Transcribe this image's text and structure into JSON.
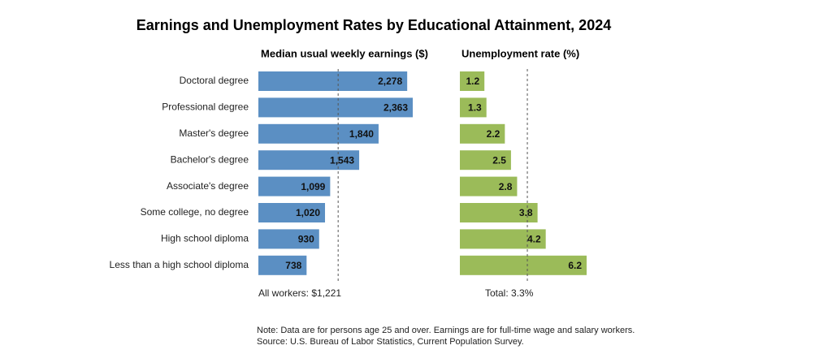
{
  "title": "Earnings and Unemployment Rates by Educational Attainment, 2024",
  "notes": [
    "Note: Data are for persons age 25 and over. Earnings are for full-time wage and salary workers.",
    "Source: U.S. Bureau of Labor Statistics, Current Population Survey."
  ],
  "chart_data": [
    {
      "type": "bar",
      "orientation": "horizontal",
      "title": "Median usual weekly earnings ($)",
      "categories": [
        "Doctoral degree",
        "Professional degree",
        "Master's degree",
        "Bachelor's degree",
        "Associate's degree",
        "Some college, no degree",
        "High school diploma",
        "Less than a high school diploma"
      ],
      "values": [
        2278,
        2363,
        1840,
        1543,
        1099,
        1020,
        930,
        738
      ],
      "value_labels": [
        "2,278",
        "2,363",
        "1,840",
        "1,543",
        "1,099",
        "1,020",
        "930",
        "738"
      ],
      "color": "#5b8fc3",
      "reference": {
        "value": 1221,
        "label": "All workers: $1,221"
      }
    },
    {
      "type": "bar",
      "orientation": "horizontal",
      "title": "Unemployment rate (%)",
      "values": [
        1.2,
        1.3,
        2.2,
        2.5,
        2.8,
        3.8,
        4.2,
        6.2
      ],
      "color": "#9bbb59",
      "reference": {
        "value": 3.3,
        "label": "Total: 3.3%"
      }
    }
  ]
}
